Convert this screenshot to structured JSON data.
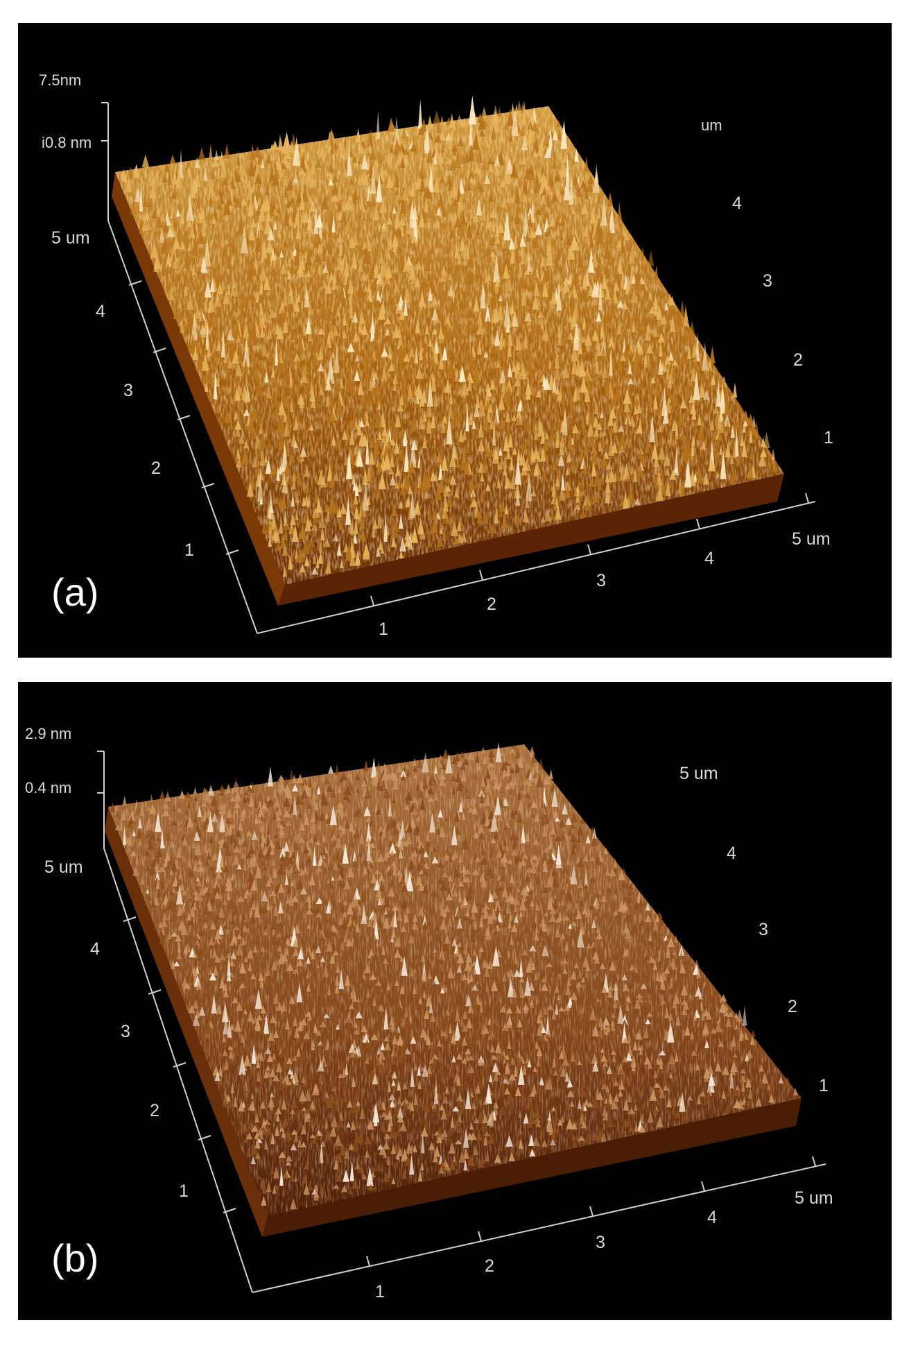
{
  "panels": [
    {
      "id": "a",
      "label": "(a)",
      "z_labels": [
        "7.5nm",
        "i0.8 nm"
      ],
      "y_axis_labels": [
        "5 um",
        "4",
        "3",
        "2",
        "1"
      ],
      "x_axis_labels": [
        "1",
        "2",
        "3",
        "4",
        "5 um"
      ],
      "right_axis_labels": [
        "um",
        "4",
        "3",
        "2",
        "1"
      ],
      "surface": {
        "base_color": "#a6660f",
        "peak_color": "#f8e3b0",
        "shadow_color": "#5a2a05",
        "roughness": "high"
      }
    },
    {
      "id": "b",
      "label": "(b)",
      "z_labels": [
        "2.9 nm",
        "0.4 nm"
      ],
      "y_axis_labels": [
        "5 um",
        "4",
        "3",
        "2",
        "1"
      ],
      "x_axis_labels": [
        "1",
        "2",
        "3",
        "4",
        "5 um"
      ],
      "right_axis_labels": [
        "5 um",
        "4",
        "3",
        "2",
        "1"
      ],
      "surface": {
        "base_color": "#8a4a14",
        "peak_color": "#f2e0c8",
        "shadow_color": "#4a1f06",
        "roughness": "low"
      }
    }
  ]
}
